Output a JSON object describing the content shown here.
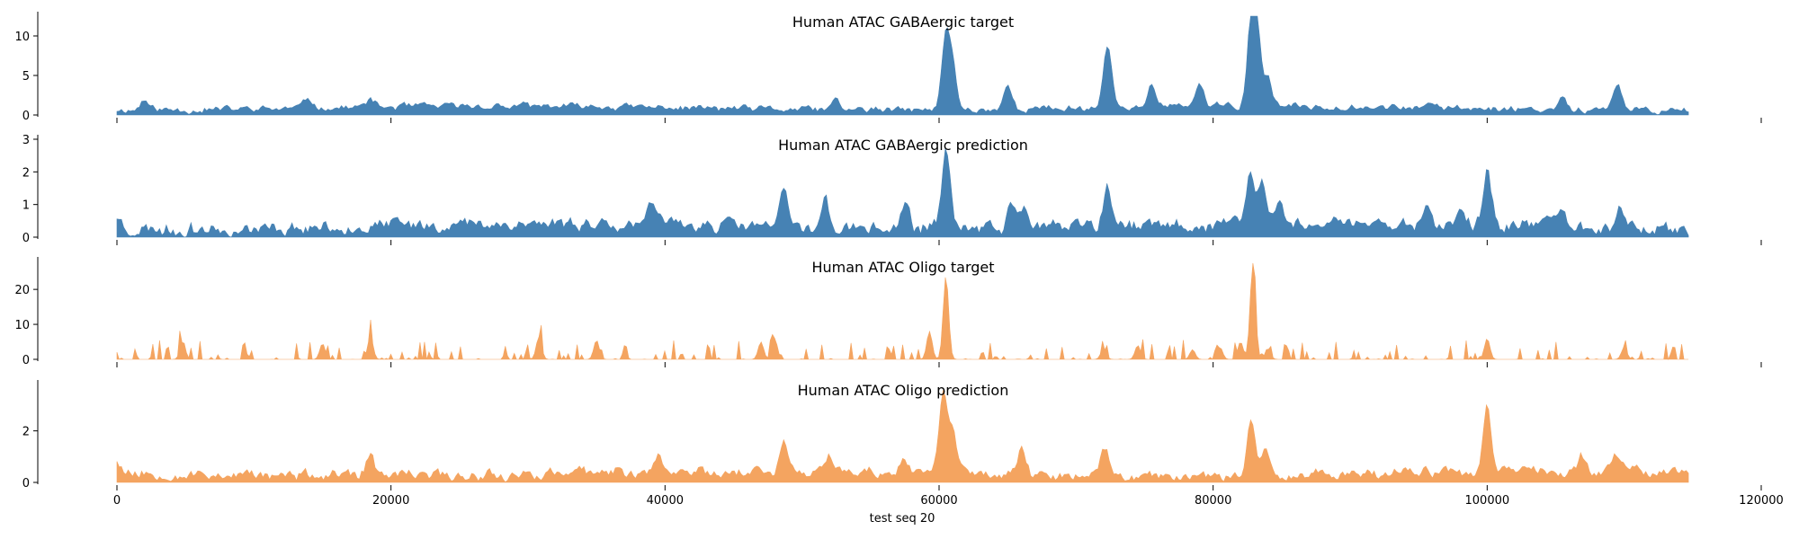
{
  "chart_data": {
    "type": "area",
    "xlabel": "test seq 20",
    "xlim": [
      0,
      120000
    ],
    "x_end": 114688,
    "xticks": [
      0,
      20000,
      40000,
      60000,
      80000,
      100000,
      120000
    ],
    "panels": [
      {
        "title": "Human ATAC GABAergic target",
        "color": "#4682b4",
        "ylim": [
          0,
          12.5
        ],
        "yticks": [
          0,
          5,
          10
        ],
        "baseline": 0.8,
        "noise": 0.5,
        "seed": 11,
        "peaks": [
          [
            2000,
            1.2
          ],
          [
            14000,
            1.3
          ],
          [
            18500,
            1.0
          ],
          [
            52500,
            1.2
          ],
          [
            60500,
            9.0
          ],
          [
            61000,
            5.0
          ],
          [
            65000,
            3.0
          ],
          [
            72300,
            8.2
          ],
          [
            75500,
            2.8
          ],
          [
            79000,
            3.0
          ],
          [
            82800,
            10.5
          ],
          [
            83200,
            8.0
          ],
          [
            84000,
            3.5
          ],
          [
            105500,
            1.8
          ],
          [
            109500,
            3.0
          ]
        ]
      },
      {
        "title": "Human ATAC GABAergic prediction",
        "color": "#4682b4",
        "ylim": [
          0,
          3.0
        ],
        "yticks": [
          0,
          1,
          2,
          3
        ],
        "baseline": 0.3,
        "noise": 0.25,
        "seed": 23,
        "peaks": [
          [
            0,
            0.4
          ],
          [
            39000,
            0.5
          ],
          [
            48700,
            1.0
          ],
          [
            51700,
            0.8
          ],
          [
            57500,
            0.7
          ],
          [
            60500,
            2.6
          ],
          [
            65300,
            0.7
          ],
          [
            66300,
            0.8
          ],
          [
            72300,
            1.2
          ],
          [
            82700,
            1.6
          ],
          [
            83600,
            1.3
          ],
          [
            84800,
            0.7
          ],
          [
            95500,
            0.5
          ],
          [
            98000,
            0.4
          ],
          [
            100000,
            1.7
          ],
          [
            105300,
            0.6
          ],
          [
            109700,
            0.8
          ]
        ]
      },
      {
        "title": "Human ATAC Oligo target",
        "color": "#f4a460",
        "ylim": [
          0,
          28
        ],
        "yticks": [
          0,
          10,
          20
        ],
        "baseline": 0.0,
        "noise": 0.0,
        "seed": 37,
        "sparse": true,
        "peaks": [
          [
            4800,
            5.0
          ],
          [
            15000,
            4.5
          ],
          [
            18500,
            6.5
          ],
          [
            30800,
            6.5
          ],
          [
            35000,
            5.5
          ],
          [
            47000,
            5.0
          ],
          [
            48000,
            6.0
          ],
          [
            59300,
            8.0
          ],
          [
            60500,
            24.0
          ],
          [
            72000,
            3.0
          ],
          [
            74500,
            4.0
          ],
          [
            78500,
            2.8
          ],
          [
            80500,
            3.5
          ],
          [
            82000,
            5.0
          ],
          [
            82900,
            27.5
          ],
          [
            84000,
            3.0
          ],
          [
            100000,
            6.0
          ],
          [
            110000,
            3.5
          ]
        ]
      },
      {
        "title": "Human ATAC Oligo prediction",
        "color": "#f4a460",
        "ylim": [
          0,
          3.8
        ],
        "yticks": [
          0,
          2
        ],
        "baseline": 0.3,
        "noise": 0.25,
        "seed": 53,
        "peaks": [
          [
            0,
            0.5
          ],
          [
            18500,
            0.8
          ],
          [
            39500,
            0.6
          ],
          [
            48700,
            1.3
          ],
          [
            52000,
            0.6
          ],
          [
            57500,
            0.5
          ],
          [
            60300,
            3.2
          ],
          [
            61000,
            1.8
          ],
          [
            66000,
            1.0
          ],
          [
            72100,
            1.0
          ],
          [
            82800,
            2.2
          ],
          [
            83800,
            1.2
          ],
          [
            100000,
            2.7
          ],
          [
            107000,
            0.6
          ],
          [
            109500,
            0.6
          ]
        ]
      }
    ]
  }
}
